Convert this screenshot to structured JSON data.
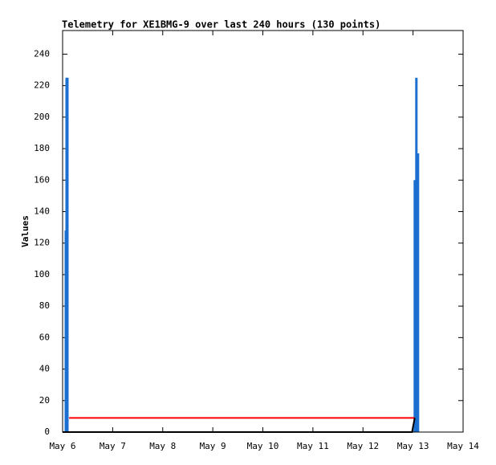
{
  "chart_data": {
    "type": "line",
    "title": "Telemetry for XE1BMG-9 over last 240 hours (130 points)",
    "y_label": "Values",
    "xlim": [
      6,
      14
    ],
    "ylim": [
      0,
      255
    ],
    "xticks": [
      {
        "value": 6,
        "label": "May 6"
      },
      {
        "value": 7,
        "label": "May 7"
      },
      {
        "value": 8,
        "label": "May 8"
      },
      {
        "value": 9,
        "label": "May 9"
      },
      {
        "value": 10,
        "label": "May 10"
      },
      {
        "value": 11,
        "label": "May 11"
      },
      {
        "value": 12,
        "label": "May 12"
      },
      {
        "value": 13,
        "label": "May 13"
      },
      {
        "value": 14,
        "label": "May 14"
      }
    ],
    "yticks": [
      0,
      20,
      40,
      60,
      80,
      100,
      120,
      140,
      160,
      180,
      200,
      220,
      240
    ],
    "series": [
      {
        "color": "#1a6fd0",
        "style": "impulses",
        "x": [
          6.064,
          6.08,
          6.096,
          13.035,
          13.067,
          13.099
        ],
        "values": [
          128,
          225,
          225,
          160,
          225,
          177
        ]
      },
      {
        "color": "#ff0000",
        "style": "line",
        "x": [
          6.13,
          13.035
        ],
        "values": [
          9,
          9
        ]
      },
      {
        "color": "#000000",
        "style": "line",
        "x": [
          6.0,
          12.98,
          13.035
        ],
        "values": [
          0,
          0,
          9
        ]
      }
    ]
  }
}
